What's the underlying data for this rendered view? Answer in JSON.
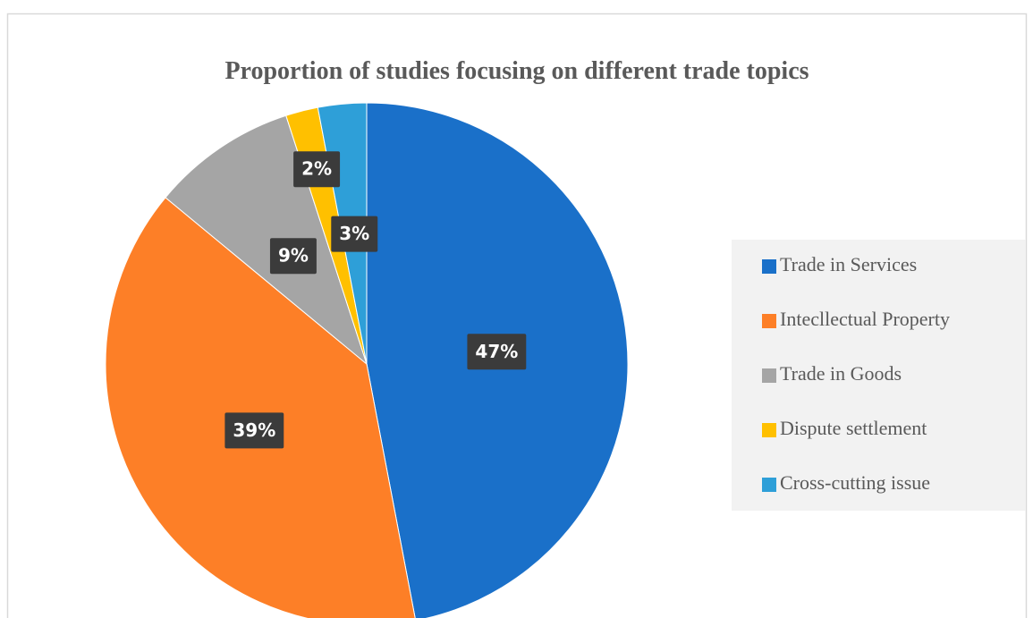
{
  "chart_data": {
    "type": "pie",
    "title": "Proportion of studies focusing on different trade topics",
    "categories": [
      "Trade in Services",
      "Intecllectual Property",
      "Trade in Goods",
      "Dispute settlement",
      "Cross-cutting issue"
    ],
    "values": [
      47,
      39,
      9,
      2,
      3
    ],
    "value_labels": [
      "47%",
      "39%",
      "9%",
      "2%",
      "3%"
    ],
    "colors": [
      "#1a70c9",
      "#fd7f27",
      "#a5a5a5",
      "#ffc000",
      "#2e9fd8"
    ],
    "legend": "right"
  }
}
